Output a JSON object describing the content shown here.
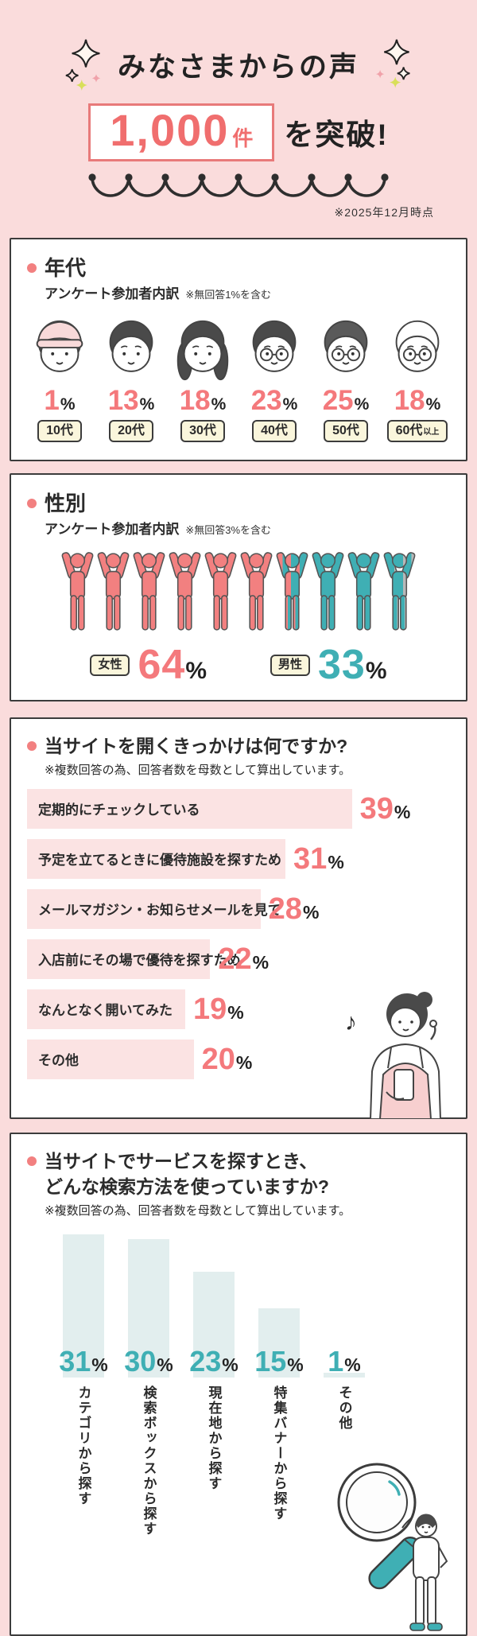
{
  "common": {
    "percent_sign": "%"
  },
  "colors": {
    "background": "#fadcdc",
    "coral": "#f28080",
    "coral_number": "#f4797c",
    "teal": "#3fafb4",
    "no_answer_grey": "#b8b8b8",
    "cream_badge": "#faf6dc",
    "pink_bar": "#fbe3e3",
    "pale_teal_bar": "#e2eeee",
    "card_border": "#3c3c3c"
  },
  "header": {
    "title": "みなさまからの声",
    "count_value": "1,000",
    "count_unit": "件",
    "suffix": "を突破!",
    "date_note": "※2025年12月時点"
  },
  "age_section": {
    "title": "年代",
    "subtitle": "アンケート参加者内訳",
    "note": "※無回答1%を含む",
    "groups": [
      {
        "label": "10代",
        "label_small": "",
        "value": 1,
        "icon": "face-10s-icon",
        "hat": true,
        "glasses": false,
        "long_hair": false,
        "hair_color": "#4a4a4a"
      },
      {
        "label": "20代",
        "label_small": "",
        "value": 13,
        "icon": "face-20s-icon",
        "hat": false,
        "glasses": false,
        "long_hair": false,
        "hair_color": "#4a4a4a"
      },
      {
        "label": "30代",
        "label_small": "",
        "value": 18,
        "icon": "face-30s-icon",
        "hat": false,
        "glasses": false,
        "long_hair": true,
        "hair_color": "#4a4a4a"
      },
      {
        "label": "40代",
        "label_small": "",
        "value": 23,
        "icon": "face-40s-icon",
        "hat": false,
        "glasses": true,
        "long_hair": false,
        "hair_color": "#4a4a4a"
      },
      {
        "label": "50代",
        "label_small": "",
        "value": 25,
        "icon": "face-50s-icon",
        "hat": false,
        "glasses": true,
        "long_hair": false,
        "hair_color": "#5a5a5a"
      },
      {
        "label": "60代",
        "label_small": "以上",
        "value": 18,
        "icon": "face-60s-icon",
        "hat": false,
        "glasses": true,
        "long_hair": false,
        "hair_color": "#ffffff"
      }
    ]
  },
  "gender_section": {
    "title": "性別",
    "subtitle": "アンケート参加者内訳",
    "note": "※無回答3%を含む",
    "female": {
      "label": "女性",
      "value": 64
    },
    "male": {
      "label": "男性",
      "value": 33
    },
    "figures": [
      "female",
      "female",
      "female",
      "female",
      "female",
      "female",
      "female-male",
      "male",
      "male",
      "male-none"
    ]
  },
  "trigger_section": {
    "title": "当サイトを開くきっかけは何ですか?",
    "note": "※複数回答の為、回答者数を母数として算出しています。",
    "bars": [
      {
        "label": "定期的にチェックしている",
        "value": 39
      },
      {
        "label": "予定を立てるときに優待施設を探すため",
        "value": 31
      },
      {
        "label": "メールマガジン・お知らせメールを見て",
        "value": 28
      },
      {
        "label": "入店前にその場で優待を探すため",
        "value": 22
      },
      {
        "label": "なんとなく開いてみた",
        "value": 19
      },
      {
        "label": "その他",
        "value": 20
      }
    ]
  },
  "search_section": {
    "title_line1": "当サイトでサービスを探すとき、",
    "title_line2": "どんな検索方法を使っていますか?",
    "note": "※複数回答の為、回答者数を母数として算出しています。",
    "bars": [
      {
        "label": "カテゴリから探す",
        "value": 31
      },
      {
        "label": "検索ボックスから探す",
        "value": 30
      },
      {
        "label": "現在地から探す",
        "value": 23
      },
      {
        "label": "特集バナーから探す",
        "value": 15
      },
      {
        "label": "その他",
        "value": 1
      }
    ]
  },
  "chart_data": [
    {
      "type": "bar",
      "style": "pictogram-faces",
      "title": "年代 アンケート参加者内訳",
      "note": "※無回答1%を含む",
      "categories": [
        "10代",
        "20代",
        "30代",
        "40代",
        "50代",
        "60代以上"
      ],
      "values": [
        1,
        13,
        18,
        23,
        25,
        18
      ],
      "unit": "%"
    },
    {
      "type": "bar",
      "style": "pictogram-people",
      "title": "性別 アンケート参加者内訳",
      "note": "※無回答3%を含む",
      "categories": [
        "女性",
        "男性"
      ],
      "values": [
        64,
        33
      ],
      "unit": "%"
    },
    {
      "type": "bar",
      "orientation": "horizontal",
      "title": "当サイトを開くきっかけは何ですか?",
      "note": "※複数回答の為、回答者数を母数として算出しています。",
      "categories": [
        "定期的にチェックしている",
        "予定を立てるときに優待施設を探すため",
        "メールマガジン・お知らせメールを見て",
        "入店前にその場で優待を探すため",
        "なんとなく開いてみた",
        "その他"
      ],
      "values": [
        39,
        31,
        28,
        22,
        19,
        20
      ],
      "unit": "%"
    },
    {
      "type": "bar",
      "orientation": "vertical",
      "title": "当サイトでサービスを探すとき、どんな検索方法を使っていますか?",
      "note": "※複数回答の為、回答者数を母数として算出しています。",
      "categories": [
        "カテゴリから探す",
        "検索ボックスから探す",
        "現在地から探す",
        "特集バナーから探す",
        "その他"
      ],
      "values": [
        31,
        30,
        23,
        15,
        1
      ],
      "unit": "%"
    }
  ]
}
